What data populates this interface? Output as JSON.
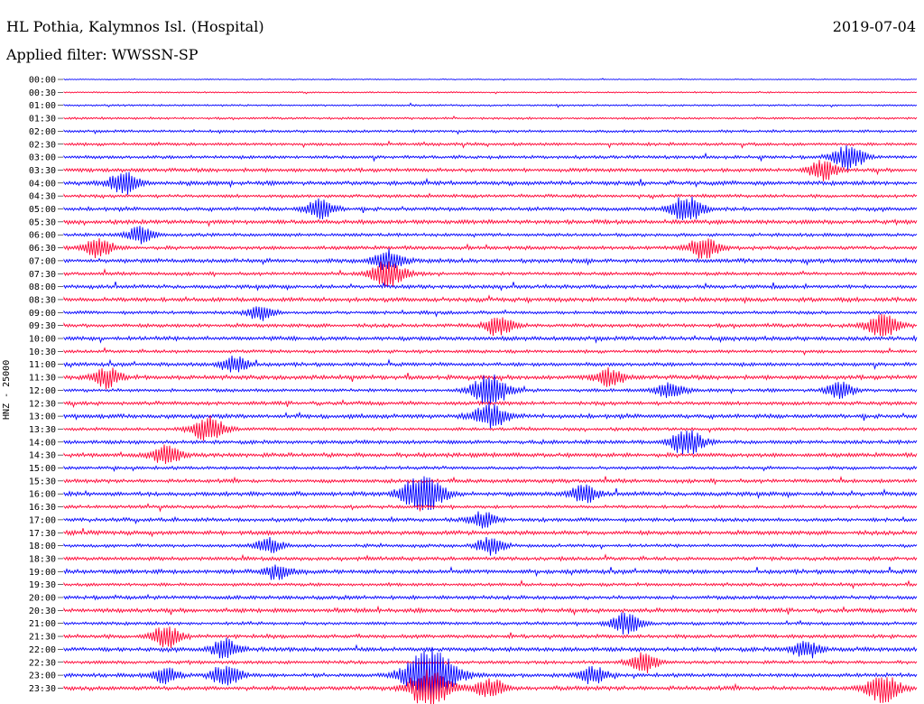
{
  "header": {
    "station": "HL Pothia, Kalymnos Isl. (Hospital)",
    "date": "2019-07-04",
    "filter": "Applied filter: WWSSN-SP"
  },
  "chart_data": {
    "type": "line",
    "title": "HL Pothia, Kalymnos Isl. (Hospital)",
    "channel_label": "HNZ - 25000",
    "colors": {
      "even_rows": "#0000ff",
      "odd_rows": "#ff0033"
    },
    "row_labels": [
      "00:00",
      "00:30",
      "01:00",
      "01:30",
      "02:00",
      "02:30",
      "03:00",
      "03:30",
      "04:00",
      "04:30",
      "05:00",
      "05:30",
      "06:00",
      "06:30",
      "07:00",
      "07:30",
      "08:00",
      "08:30",
      "09:00",
      "09:30",
      "10:00",
      "10:30",
      "11:00",
      "11:30",
      "12:00",
      "12:30",
      "13:00",
      "13:30",
      "14:00",
      "14:30",
      "15:00",
      "15:30",
      "16:00",
      "16:30",
      "17:00",
      "17:30",
      "18:00",
      "18:30",
      "19:00",
      "19:30",
      "20:00",
      "20:30",
      "21:00",
      "21:30",
      "22:00",
      "22:30",
      "23:00",
      "23:30"
    ],
    "events": [
      {
        "row": 6,
        "time": 0.92,
        "amp": 0.6
      },
      {
        "row": 7,
        "time": 0.89,
        "amp": 0.5
      },
      {
        "row": 8,
        "time": 0.07,
        "amp": 0.55
      },
      {
        "row": 10,
        "time": 0.3,
        "amp": 0.5
      },
      {
        "row": 10,
        "time": 0.73,
        "amp": 0.65
      },
      {
        "row": 12,
        "time": 0.09,
        "amp": 0.45
      },
      {
        "row": 13,
        "time": 0.04,
        "amp": 0.5
      },
      {
        "row": 13,
        "time": 0.75,
        "amp": 0.55
      },
      {
        "row": 14,
        "time": 0.38,
        "amp": 0.55
      },
      {
        "row": 15,
        "time": 0.38,
        "amp": 0.7
      },
      {
        "row": 18,
        "time": 0.23,
        "amp": 0.4
      },
      {
        "row": 19,
        "time": 0.51,
        "amp": 0.5
      },
      {
        "row": 19,
        "time": 0.96,
        "amp": 0.6
      },
      {
        "row": 22,
        "time": 0.2,
        "amp": 0.45
      },
      {
        "row": 23,
        "time": 0.05,
        "amp": 0.5
      },
      {
        "row": 23,
        "time": 0.64,
        "amp": 0.45
      },
      {
        "row": 24,
        "time": 0.5,
        "amp": 0.8
      },
      {
        "row": 24,
        "time": 0.71,
        "amp": 0.45
      },
      {
        "row": 24,
        "time": 0.91,
        "amp": 0.45
      },
      {
        "row": 26,
        "time": 0.5,
        "amp": 0.65
      },
      {
        "row": 27,
        "time": 0.17,
        "amp": 0.65
      },
      {
        "row": 28,
        "time": 0.73,
        "amp": 0.65
      },
      {
        "row": 29,
        "time": 0.12,
        "amp": 0.5
      },
      {
        "row": 32,
        "time": 0.41,
        "amp": 0.6
      },
      {
        "row": 32,
        "time": 0.43,
        "amp": 0.65
      },
      {
        "row": 32,
        "time": 0.61,
        "amp": 0.45
      },
      {
        "row": 34,
        "time": 0.49,
        "amp": 0.4
      },
      {
        "row": 36,
        "time": 0.24,
        "amp": 0.4
      },
      {
        "row": 36,
        "time": 0.5,
        "amp": 0.45
      },
      {
        "row": 38,
        "time": 0.25,
        "amp": 0.4
      },
      {
        "row": 42,
        "time": 0.66,
        "amp": 0.55
      },
      {
        "row": 43,
        "time": 0.12,
        "amp": 0.55
      },
      {
        "row": 44,
        "time": 0.19,
        "amp": 0.5
      },
      {
        "row": 44,
        "time": 0.87,
        "amp": 0.45
      },
      {
        "row": 45,
        "time": 0.68,
        "amp": 0.5
      },
      {
        "row": 46,
        "time": 0.12,
        "amp": 0.4
      },
      {
        "row": 46,
        "time": 0.19,
        "amp": 0.55
      },
      {
        "row": 46,
        "time": 0.43,
        "amp": 1.4
      },
      {
        "row": 46,
        "time": 0.62,
        "amp": 0.45
      },
      {
        "row": 47,
        "time": 0.43,
        "amp": 1.0
      },
      {
        "row": 47,
        "time": 0.5,
        "amp": 0.5
      },
      {
        "row": 47,
        "time": 0.96,
        "amp": 0.7
      }
    ]
  }
}
